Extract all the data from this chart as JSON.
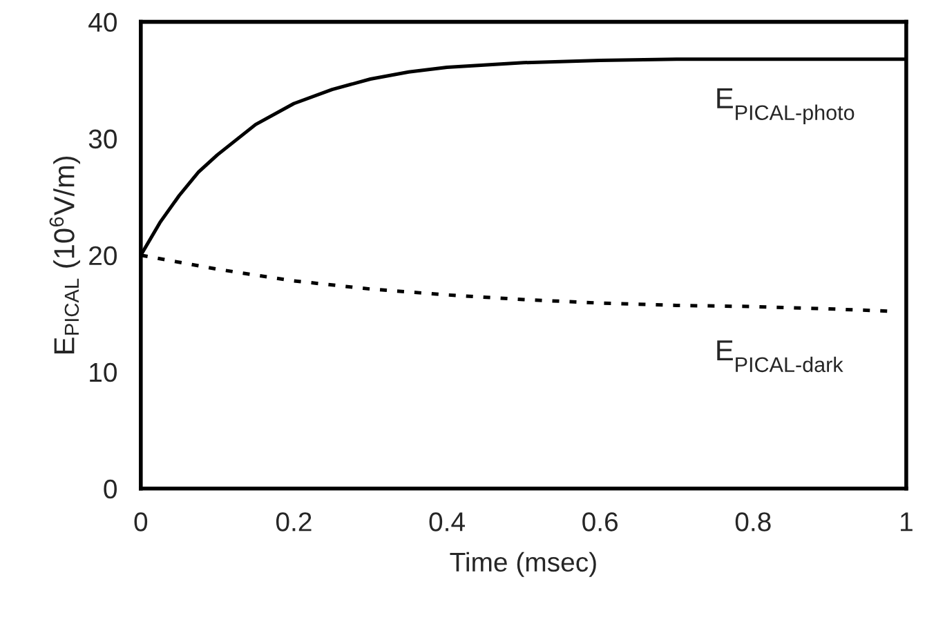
{
  "chart_data": {
    "type": "line",
    "xlabel": "Time (msec)",
    "ylabel": "E$_{PICAL}$ (10$^{6}$V/m)",
    "xlim": [
      0,
      1
    ],
    "ylim": [
      0,
      40
    ],
    "xticks": [
      0,
      0.2,
      0.4,
      0.6,
      0.8,
      1
    ],
    "yticks": [
      0,
      10,
      20,
      30,
      40
    ],
    "grid": false,
    "legend": false,
    "series": [
      {
        "name": "E$_{PICAL-photo}$",
        "color": "#000000",
        "line_style": "solid",
        "x": [
          0,
          0.025,
          0.05,
          0.075,
          0.1,
          0.15,
          0.2,
          0.25,
          0.3,
          0.35,
          0.4,
          0.5,
          0.6,
          0.7,
          0.8,
          1
        ],
        "values": [
          20,
          22.8,
          25.1,
          27.1,
          28.6,
          31.2,
          33.0,
          34.2,
          35.1,
          35.7,
          36.1,
          36.5,
          36.7,
          36.8,
          36.8,
          36.8
        ]
      },
      {
        "name": "E$_{PICAL-dark}$",
        "color": "#000000",
        "line_style": "dotted",
        "x": [
          0,
          0.1,
          0.2,
          0.3,
          0.4,
          0.5,
          0.6,
          0.7,
          0.8,
          0.9,
          0.98
        ],
        "values": [
          20,
          18.8,
          17.8,
          17.1,
          16.6,
          16.2,
          15.9,
          15.7,
          15.6,
          15.4,
          15.2
        ]
      }
    ]
  }
}
